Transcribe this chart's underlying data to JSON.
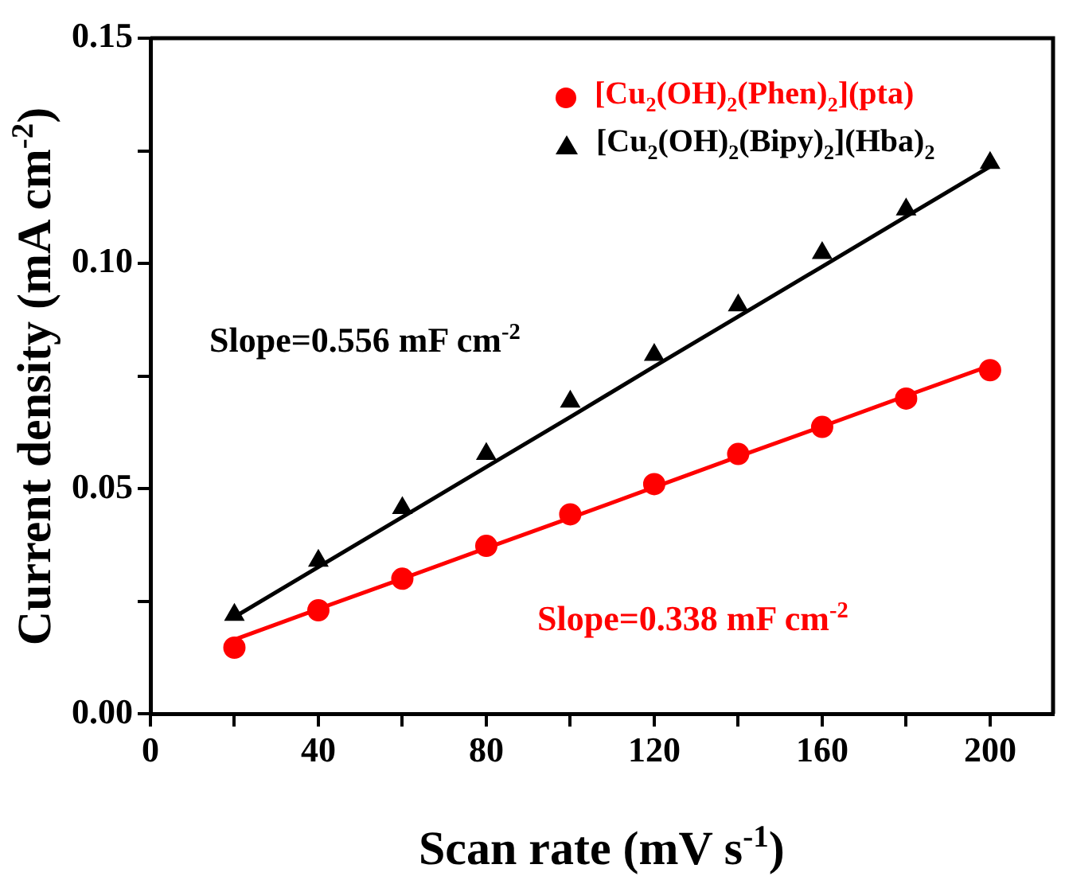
{
  "chart_data": {
    "type": "scatter",
    "xlabel": "Scan rate (mV s$^{-1}$)",
    "ylabel": "Current density (mA cm$^{-2}$)",
    "xlim": [
      0,
      215
    ],
    "xticks": [
      0,
      {
        "value": 20,
        "label": null
      },
      40,
      {
        "value": 60,
        "label": null
      },
      80,
      {
        "value": 100,
        "label": null
      },
      120,
      {
        "value": 140,
        "label": null
      },
      160,
      {
        "value": 180,
        "label": null
      },
      200
    ],
    "ylim": [
      0,
      0.15
    ],
    "yticks": [
      {
        "value": 0,
        "label": "0.00"
      },
      {
        "value": 0.025,
        "label": null
      },
      0.05,
      {
        "value": 0.075,
        "label": null
      },
      {
        "value": 0.1,
        "label": "0.10"
      },
      {
        "value": 0.125,
        "label": null
      },
      {
        "value": 0.15,
        "label": "0.15"
      }
    ],
    "grid": false,
    "legend": "top",
    "x": [
      20,
      40,
      60,
      80,
      100,
      120,
      140,
      160,
      180,
      200
    ],
    "series": [
      {
        "name": "[Cu$_{2}$(OH)$_{2}$(Phen)$_{2}$](pta)",
        "type": "scatter",
        "marker": "circle",
        "color": "#ff0000",
        "values": [
          0.0147,
          0.023,
          0.03,
          0.0373,
          0.0443,
          0.051,
          0.0577,
          0.0637,
          0.07,
          0.0763
        ]
      },
      {
        "name": "[Cu$_{2}$(OH)$_{2}$(Bipy)$_{2}$](Hba)$_{2}$",
        "type": "scatter",
        "marker": "triangle",
        "color": "#000000",
        "values": [
          0.022,
          0.034,
          0.0457,
          0.0577,
          0.0693,
          0.0797,
          0.0907,
          0.1023,
          0.112,
          0.1223
        ]
      },
      {
        "type": "line",
        "marker": "none",
        "color": "#000000",
        "values": [
          0.0215,
          0.0326,
          0.0437,
          0.0548,
          0.0659,
          0.0771,
          0.0882,
          0.0993,
          0.1104,
          0.1215
        ]
      },
      {
        "type": "line",
        "marker": "none",
        "color": "#ff0000",
        "values": [
          0.0165,
          0.0233,
          0.03,
          0.0368,
          0.0435,
          0.0503,
          0.0571,
          0.0638,
          0.0706,
          0.0773
        ]
      }
    ],
    "annotations": [
      "Slope=0.556 mF cm$^{-2}$",
      "Slope=0.338 mF cm$^{-2}$"
    ]
  }
}
